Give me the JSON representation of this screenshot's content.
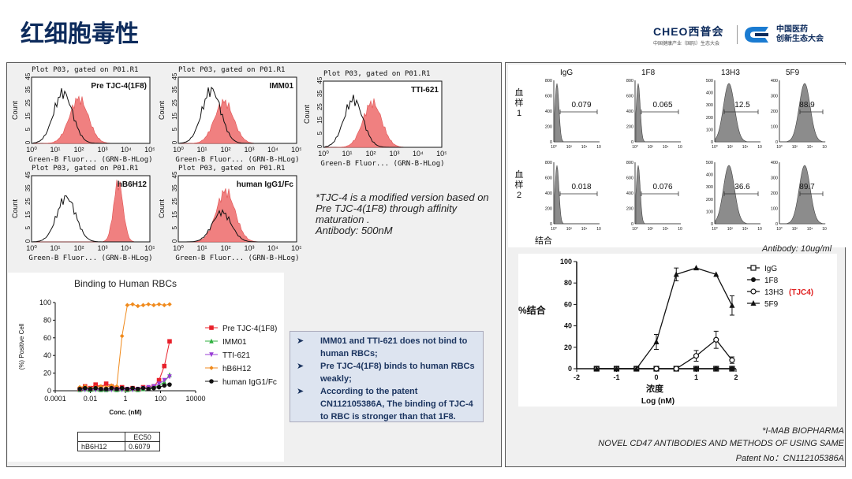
{
  "slide_title": "红细胞毒性",
  "logo_left": {
    "brand": "CHEO",
    "brand_cn": "西普会",
    "sub": "中国健康产业（国际）生态大会"
  },
  "logo_right": {
    "line1": "中国医药",
    "line2": "创新生态大会"
  },
  "histograms": [
    {
      "plot_title": "Plot P03, gated on P01.R1",
      "label": "Pre TJC-4(1F8)",
      "xaxis": "Green-B Fluor... (GRN-B-HLog)",
      "yaxis": "Count",
      "yticks": [
        "0",
        "5",
        "15",
        "25",
        "35",
        "45"
      ],
      "xticks": [
        "10⁰",
        "10¹",
        "10²",
        "10³",
        "10⁴",
        "10⁵"
      ]
    },
    {
      "plot_title": "Plot P03, gated on P01.R1",
      "label": "IMM01",
      "xaxis": "Green-B Fluor... (GRN-B-HLog)",
      "yaxis": "Count",
      "yticks": [
        "0",
        "5",
        "15",
        "25",
        "35",
        "45"
      ],
      "xticks": [
        "10⁰",
        "10¹",
        "10²",
        "10³",
        "10⁴",
        "10⁵"
      ]
    },
    {
      "plot_title": "Plot P03, gated on P01.R1",
      "label": "TTI-621",
      "xaxis": "Green-B Fluor... (GRN-B-HLog)",
      "yaxis": "Count",
      "yticks": [
        "0",
        "5",
        "15",
        "25",
        "35",
        "45"
      ],
      "xticks": [
        "10⁰",
        "10¹",
        "10²",
        "10³",
        "10⁴",
        "10⁵"
      ]
    },
    {
      "plot_title": "Plot P03, gated on P01.R1",
      "label": "hB6H12",
      "xaxis": "Green-B Fluor... (GRN-B-HLog)",
      "yaxis": "Count",
      "yticks": [
        "0",
        "5",
        "15",
        "25",
        "35",
        "45"
      ],
      "xticks": [
        "10⁰",
        "10¹",
        "10²",
        "10³",
        "10⁴",
        "10⁵"
      ]
    },
    {
      "plot_title": "Plot P03, gated on P01.R1",
      "label": "human IgG1/Fc",
      "xaxis": "Green-B Fluor... (GRN-B-HLog)",
      "yaxis": "Count",
      "yticks": [
        "0",
        "5",
        "15",
        "25",
        "35",
        "45"
      ],
      "xticks": [
        "10⁰",
        "10¹",
        "10²",
        "10³",
        "10⁴",
        "10⁵"
      ]
    }
  ],
  "note": {
    "line1": "*TJC-4 is a modified version based on",
    "line2": "Pre TJC-4(1F8)  through affinity",
    "line3": "maturation .",
    "line4": "Antibody: 500nM"
  },
  "bullets": [
    "IMM01 and TTI-621 does not bind to human RBCs;",
    "Pre TJC-4(1F8) binds to human RBCs weakly;",
    "According to the patent CN112105386A, The binding of TJC-4 to RBC is stronger than that 1F8."
  ],
  "ec50_table": {
    "header": "EC50",
    "row_label": "hB6H12",
    "row_value": "0.6079"
  },
  "flow_grid": {
    "columns": [
      "IgG",
      "1F8",
      "13H3",
      "5F9"
    ],
    "rows": [
      {
        "label_chars": [
          "血",
          "样",
          "1"
        ],
        "values": [
          "0.079",
          "0.065",
          "12.5",
          "88.9"
        ]
      },
      {
        "label_chars": [
          "血",
          "样",
          "2"
        ],
        "values": [
          "0.018",
          "0.076",
          "36.6",
          "89.7"
        ]
      }
    ],
    "xlabel": "结合",
    "antibody_note": "Antibody: 10ug/ml"
  },
  "chart_data": [
    {
      "type": "scatter",
      "title": "Binding to Human RBCs",
      "xlabel": "Conc. (nM)",
      "ylabel": "(%) Positive Cell",
      "xscale": "log",
      "xlim": [
        0.0001,
        10000
      ],
      "ylim": [
        0,
        100
      ],
      "xticks": [
        "0.0001",
        "0.01",
        "1",
        "100",
        "10000"
      ],
      "yticks": [
        "0",
        "20",
        "40",
        "60",
        "80",
        "100"
      ],
      "legend_position": "right",
      "x": [
        0.0025,
        0.005,
        0.01,
        0.02,
        0.04,
        0.08,
        0.16,
        0.32,
        0.64,
        1.28,
        2.56,
        5.12,
        10.24,
        20.48,
        40.96,
        81.92,
        163.84,
        327.68
      ],
      "series": [
        {
          "name": "Pre TJC-4(1F8)",
          "color": "#e8202a",
          "marker": "square",
          "values": [
            2,
            5,
            3,
            7,
            4,
            8,
            5,
            3,
            4,
            2,
            3,
            2,
            4,
            3,
            5,
            12,
            28,
            56
          ]
        },
        {
          "name": "IMM01",
          "color": "#30b040",
          "marker": "triangle-up",
          "values": [
            1,
            2,
            1,
            2,
            1,
            1,
            2,
            1,
            2,
            1,
            2,
            1,
            2,
            3,
            4,
            6,
            10,
            18
          ]
        },
        {
          "name": "TTI-621",
          "color": "#9a3fd6",
          "marker": "triangle-down",
          "values": [
            1,
            1,
            2,
            1,
            2,
            1,
            1,
            2,
            1,
            2,
            1,
            2,
            3,
            4,
            5,
            8,
            12,
            16
          ]
        },
        {
          "name": "hB6H12",
          "color": "#f08a1c",
          "marker": "diamond",
          "values": [
            4,
            5,
            3,
            4,
            5,
            4,
            6,
            5,
            62,
            97,
            98,
            96,
            97,
            98,
            97,
            98,
            97,
            98
          ]
        },
        {
          "name": "human IgG1/Fc",
          "color": "#111111",
          "marker": "circle",
          "values": [
            2,
            3,
            2,
            3,
            2,
            2,
            3,
            2,
            3,
            2,
            3,
            2,
            3,
            2,
            3,
            4,
            6,
            7
          ]
        }
      ]
    },
    {
      "type": "line",
      "title": "",
      "xlabel": "Log (nM)",
      "xlabel_cn": "浓度",
      "ylabel": "%结合",
      "xlim": [
        -2,
        2
      ],
      "ylim": [
        0,
        100
      ],
      "xticks": [
        "-2",
        "-1",
        "0",
        "1",
        "2"
      ],
      "yticks": [
        "0",
        "20",
        "40",
        "60",
        "80",
        "100"
      ],
      "legend_position": "right",
      "x": [
        -1.5,
        -1.0,
        -0.5,
        0.0,
        0.5,
        1.0,
        1.5,
        1.9
      ],
      "series": [
        {
          "name": "IgG",
          "marker": "open-square",
          "values": [
            0,
            0,
            0,
            0,
            0,
            0,
            0,
            0
          ]
        },
        {
          "name": "1F8",
          "marker": "filled-circle",
          "values": [
            0,
            0,
            0,
            0,
            0,
            0,
            0,
            0
          ]
        },
        {
          "name": "13H3",
          "name_suffix": "(TJC4)",
          "marker": "open-circle",
          "values": [
            0,
            0,
            0,
            0,
            0,
            12,
            27,
            8
          ]
        },
        {
          "name": "5F9",
          "marker": "filled-triangle",
          "values": [
            0,
            0,
            0,
            25,
            88,
            94,
            88,
            59
          ]
        }
      ]
    }
  ],
  "citation": {
    "line1": "*I-MAB BIOPHARMA",
    "line2": "NOVEL CD47 ANTIBODIES AND METHODS OF USING SAME",
    "line3": "Patent No：CN112105386A"
  }
}
